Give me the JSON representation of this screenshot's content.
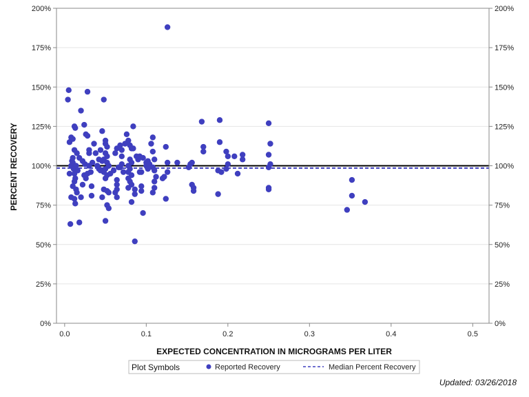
{
  "chart_data": {
    "type": "scatter",
    "xlabel": "EXPECTED CONCENTRATION IN MICROGRAMS PER LITER",
    "ylabel": "PERCENT RECOVERY",
    "xlim": [
      -0.01,
      0.52
    ],
    "ylim": [
      0,
      200
    ],
    "x_ticks": [
      0.0,
      0.1,
      0.2,
      0.3,
      0.4,
      0.5
    ],
    "x_tick_labels": [
      "0.0",
      "0.1",
      "0.2",
      "0.3",
      "0.4",
      "0.5"
    ],
    "y_ticks": [
      0,
      25,
      50,
      75,
      100,
      125,
      150,
      175,
      200
    ],
    "y_tick_labels": [
      "0%",
      "25%",
      "50%",
      "75%",
      "100%",
      "125%",
      "150%",
      "175%",
      "200%"
    ],
    "grid": true,
    "reference_line": {
      "y": 100,
      "color": "#000000"
    },
    "median_line": {
      "y": 98.5,
      "name": "Median Percent Recovery",
      "color": "#3f3fbf"
    },
    "legend": {
      "title": "Plot Symbols",
      "placement": "bottom",
      "entries": [
        "Reported Recovery",
        "Median Percent Recovery"
      ]
    },
    "series": [
      {
        "name": "Reported Recovery",
        "color": "#3f3fbf",
        "points": [
          [
            0.005,
            148
          ],
          [
            0.004,
            142
          ],
          [
            0.006,
            115
          ],
          [
            0.008,
            118
          ],
          [
            0.01,
            117
          ],
          [
            0.012,
            125
          ],
          [
            0.013,
            124
          ],
          [
            0.006,
            95
          ],
          [
            0.008,
            100
          ],
          [
            0.009,
            103
          ],
          [
            0.01,
            105
          ],
          [
            0.011,
            98
          ],
          [
            0.012,
            95
          ],
          [
            0.012,
            90
          ],
          [
            0.01,
            87
          ],
          [
            0.013,
            92
          ],
          [
            0.014,
            85
          ],
          [
            0.008,
            80
          ],
          [
            0.012,
            79
          ],
          [
            0.015,
            83
          ],
          [
            0.013,
            76
          ],
          [
            0.007,
            63
          ],
          [
            0.018,
            64
          ],
          [
            0.012,
            110
          ],
          [
            0.015,
            108
          ],
          [
            0.01,
            102
          ],
          [
            0.014,
            100
          ],
          [
            0.016,
            97
          ],
          [
            0.02,
            135
          ],
          [
            0.024,
            126
          ],
          [
            0.028,
            147
          ],
          [
            0.028,
            119
          ],
          [
            0.026,
            120
          ],
          [
            0.03,
            110
          ],
          [
            0.03,
            108
          ],
          [
            0.032,
            96
          ],
          [
            0.028,
            95
          ],
          [
            0.026,
            92
          ],
          [
            0.024,
            94
          ],
          [
            0.022,
            88
          ],
          [
            0.02,
            80
          ],
          [
            0.033,
            87
          ],
          [
            0.033,
            81
          ],
          [
            0.018,
            105
          ],
          [
            0.022,
            103
          ],
          [
            0.025,
            101
          ],
          [
            0.03,
            100
          ],
          [
            0.034,
            102
          ],
          [
            0.036,
            114
          ],
          [
            0.038,
            108
          ],
          [
            0.04,
            100
          ],
          [
            0.042,
            98
          ],
          [
            0.044,
            97
          ],
          [
            0.046,
            103
          ],
          [
            0.046,
            122
          ],
          [
            0.048,
            142
          ],
          [
            0.05,
            116
          ],
          [
            0.05,
            114
          ],
          [
            0.052,
            112
          ],
          [
            0.05,
            108
          ],
          [
            0.052,
            106
          ],
          [
            0.048,
            104
          ],
          [
            0.052,
            102
          ],
          [
            0.054,
            100
          ],
          [
            0.05,
            98
          ],
          [
            0.048,
            96
          ],
          [
            0.052,
            94
          ],
          [
            0.05,
            92
          ],
          [
            0.048,
            85
          ],
          [
            0.052,
            84
          ],
          [
            0.054,
            83
          ],
          [
            0.046,
            80
          ],
          [
            0.052,
            75
          ],
          [
            0.054,
            73
          ],
          [
            0.05,
            65
          ],
          [
            0.056,
            95
          ],
          [
            0.044,
            110
          ],
          [
            0.042,
            104
          ],
          [
            0.062,
            108
          ],
          [
            0.064,
            111
          ],
          [
            0.066,
            99
          ],
          [
            0.064,
            91
          ],
          [
            0.064,
            88
          ],
          [
            0.064,
            85
          ],
          [
            0.062,
            83
          ],
          [
            0.064,
            80
          ],
          [
            0.06,
            97
          ],
          [
            0.068,
            113
          ],
          [
            0.07,
            110
          ],
          [
            0.07,
            106
          ],
          [
            0.07,
            101
          ],
          [
            0.068,
            99
          ],
          [
            0.072,
            96
          ],
          [
            0.074,
            114
          ],
          [
            0.076,
            120
          ],
          [
            0.078,
            116
          ],
          [
            0.08,
            113
          ],
          [
            0.082,
            111
          ],
          [
            0.084,
            111
          ],
          [
            0.084,
            125
          ],
          [
            0.08,
            104
          ],
          [
            0.082,
            102
          ],
          [
            0.078,
            100
          ],
          [
            0.08,
            98
          ],
          [
            0.078,
            96
          ],
          [
            0.082,
            94
          ],
          [
            0.078,
            92
          ],
          [
            0.08,
            90
          ],
          [
            0.082,
            88
          ],
          [
            0.078,
            86
          ],
          [
            0.086,
            85
          ],
          [
            0.082,
            77
          ],
          [
            0.086,
            82
          ],
          [
            0.086,
            52
          ],
          [
            0.088,
            106
          ],
          [
            0.09,
            104
          ],
          [
            0.092,
            96
          ],
          [
            0.094,
            96
          ],
          [
            0.094,
            87
          ],
          [
            0.094,
            84
          ],
          [
            0.096,
            70
          ],
          [
            0.092,
            106
          ],
          [
            0.096,
            105
          ],
          [
            0.1,
            102
          ],
          [
            0.1,
            100
          ],
          [
            0.102,
            98
          ],
          [
            0.102,
            103
          ],
          [
            0.104,
            101
          ],
          [
            0.106,
            114
          ],
          [
            0.108,
            118
          ],
          [
            0.108,
            109
          ],
          [
            0.11,
            104
          ],
          [
            0.108,
            99
          ],
          [
            0.11,
            97
          ],
          [
            0.112,
            93
          ],
          [
            0.11,
            90
          ],
          [
            0.11,
            86
          ],
          [
            0.108,
            83
          ],
          [
            0.122,
            93
          ],
          [
            0.124,
            112
          ],
          [
            0.124,
            79
          ],
          [
            0.126,
            96
          ],
          [
            0.126,
            102
          ],
          [
            0.126,
            188
          ],
          [
            0.138,
            102
          ],
          [
            0.12,
            92
          ],
          [
            0.152,
            99
          ],
          [
            0.154,
            101
          ],
          [
            0.156,
            102
          ],
          [
            0.156,
            88
          ],
          [
            0.158,
            86
          ],
          [
            0.158,
            84
          ],
          [
            0.168,
            128
          ],
          [
            0.17,
            112
          ],
          [
            0.17,
            109
          ],
          [
            0.19,
            129
          ],
          [
            0.19,
            115
          ],
          [
            0.188,
            97
          ],
          [
            0.192,
            96
          ],
          [
            0.188,
            82
          ],
          [
            0.198,
            109
          ],
          [
            0.2,
            106
          ],
          [
            0.2,
            101
          ],
          [
            0.198,
            98
          ],
          [
            0.208,
            106
          ],
          [
            0.212,
            95
          ],
          [
            0.218,
            107
          ],
          [
            0.218,
            104
          ],
          [
            0.25,
            127
          ],
          [
            0.252,
            114
          ],
          [
            0.25,
            107
          ],
          [
            0.252,
            101
          ],
          [
            0.25,
            99
          ],
          [
            0.25,
            86
          ],
          [
            0.25,
            85
          ],
          [
            0.346,
            72
          ],
          [
            0.352,
            91
          ],
          [
            0.352,
            81
          ],
          [
            0.368,
            77
          ]
        ]
      }
    ]
  },
  "footer": {
    "updated": "Updated: 03/26/2018"
  }
}
